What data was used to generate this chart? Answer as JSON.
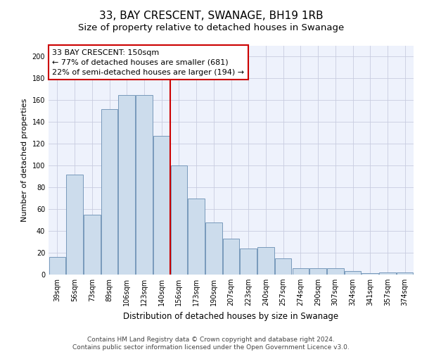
{
  "title": "33, BAY CRESCENT, SWANAGE, BH19 1RB",
  "subtitle": "Size of property relative to detached houses in Swanage",
  "xlabel": "Distribution of detached houses by size in Swanage",
  "ylabel": "Number of detached properties",
  "categories": [
    "39sqm",
    "56sqm",
    "73sqm",
    "89sqm",
    "106sqm",
    "123sqm",
    "140sqm",
    "156sqm",
    "173sqm",
    "190sqm",
    "207sqm",
    "223sqm",
    "240sqm",
    "257sqm",
    "274sqm",
    "290sqm",
    "307sqm",
    "324sqm",
    "341sqm",
    "357sqm",
    "374sqm"
  ],
  "values": [
    16,
    92,
    55,
    152,
    165,
    165,
    127,
    100,
    70,
    48,
    33,
    24,
    25,
    15,
    6,
    6,
    6,
    3,
    1,
    2,
    2
  ],
  "bar_color": "#ccdcec",
  "bar_edge_color": "#7799bb",
  "vline_x_index": 7,
  "vline_color": "#cc0000",
  "annotation_line1": "33 BAY CRESCENT: 150sqm",
  "annotation_line2": "← 77% of detached houses are smaller (681)",
  "annotation_line3": "22% of semi-detached houses are larger (194) →",
  "annotation_box_color": "#ffffff",
  "annotation_box_edge": "#cc0000",
  "ylim": [
    0,
    210
  ],
  "yticks": [
    0,
    20,
    40,
    60,
    80,
    100,
    120,
    140,
    160,
    180,
    200
  ],
  "grid_color": "#c8cce0",
  "background_color": "#eef2fc",
  "footer_text": "Contains HM Land Registry data © Crown copyright and database right 2024.\nContains public sector information licensed under the Open Government Licence v3.0.",
  "title_fontsize": 11,
  "subtitle_fontsize": 9.5,
  "xlabel_fontsize": 8.5,
  "ylabel_fontsize": 8,
  "tick_fontsize": 7,
  "annotation_fontsize": 8,
  "footer_fontsize": 6.5
}
